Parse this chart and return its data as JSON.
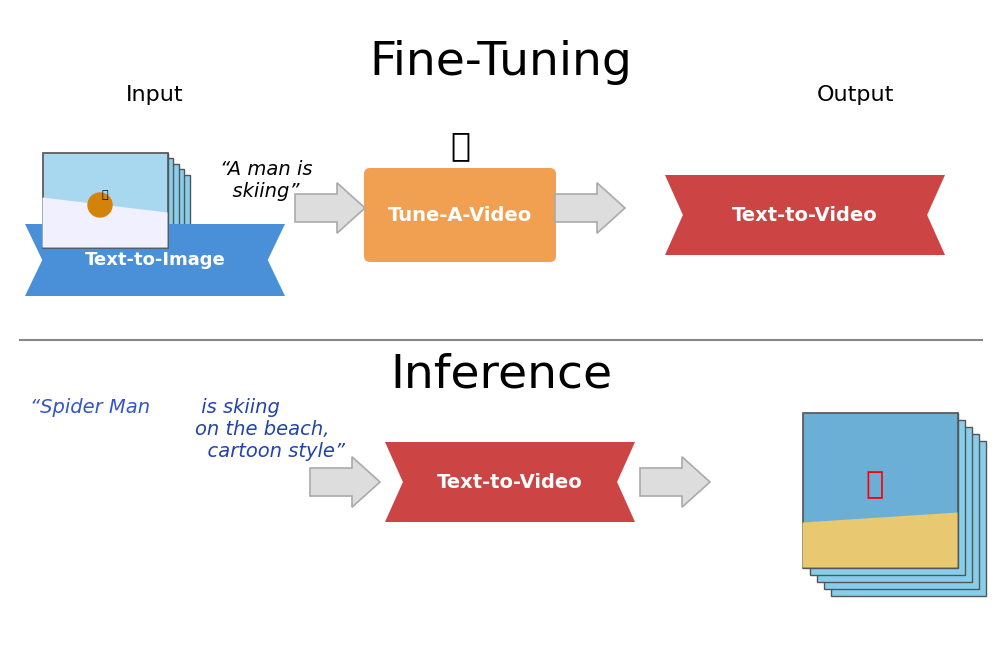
{
  "title_finetune": "Fine-Tuning",
  "title_inference": "Inference",
  "label_input": "Input",
  "label_output": "Output",
  "label_tti": "Text-to-Image",
  "label_tav": "Tune-A-Video",
  "label_t2v_top": "Text-to-Video",
  "label_t2v_bot": "Text-to-Video",
  "quote_top": "“A man is\n  skiing”",
  "quote_bot_part1": "“Spider Man",
  "quote_bot_part2": " is skiing\non the beach,\n  cartoon style”",
  "color_blue": "#4A90D9",
  "color_orange_box": "#F0A050",
  "color_red": "#CC4444",
  "color_white": "#FFFFFF",
  "color_arrow_fill": "#E0E0E0",
  "color_arrow_edge": "#AAAAAA",
  "color_divider": "#888888",
  "fire_emoji": "🔥",
  "bg_color": "#FFFFFF"
}
